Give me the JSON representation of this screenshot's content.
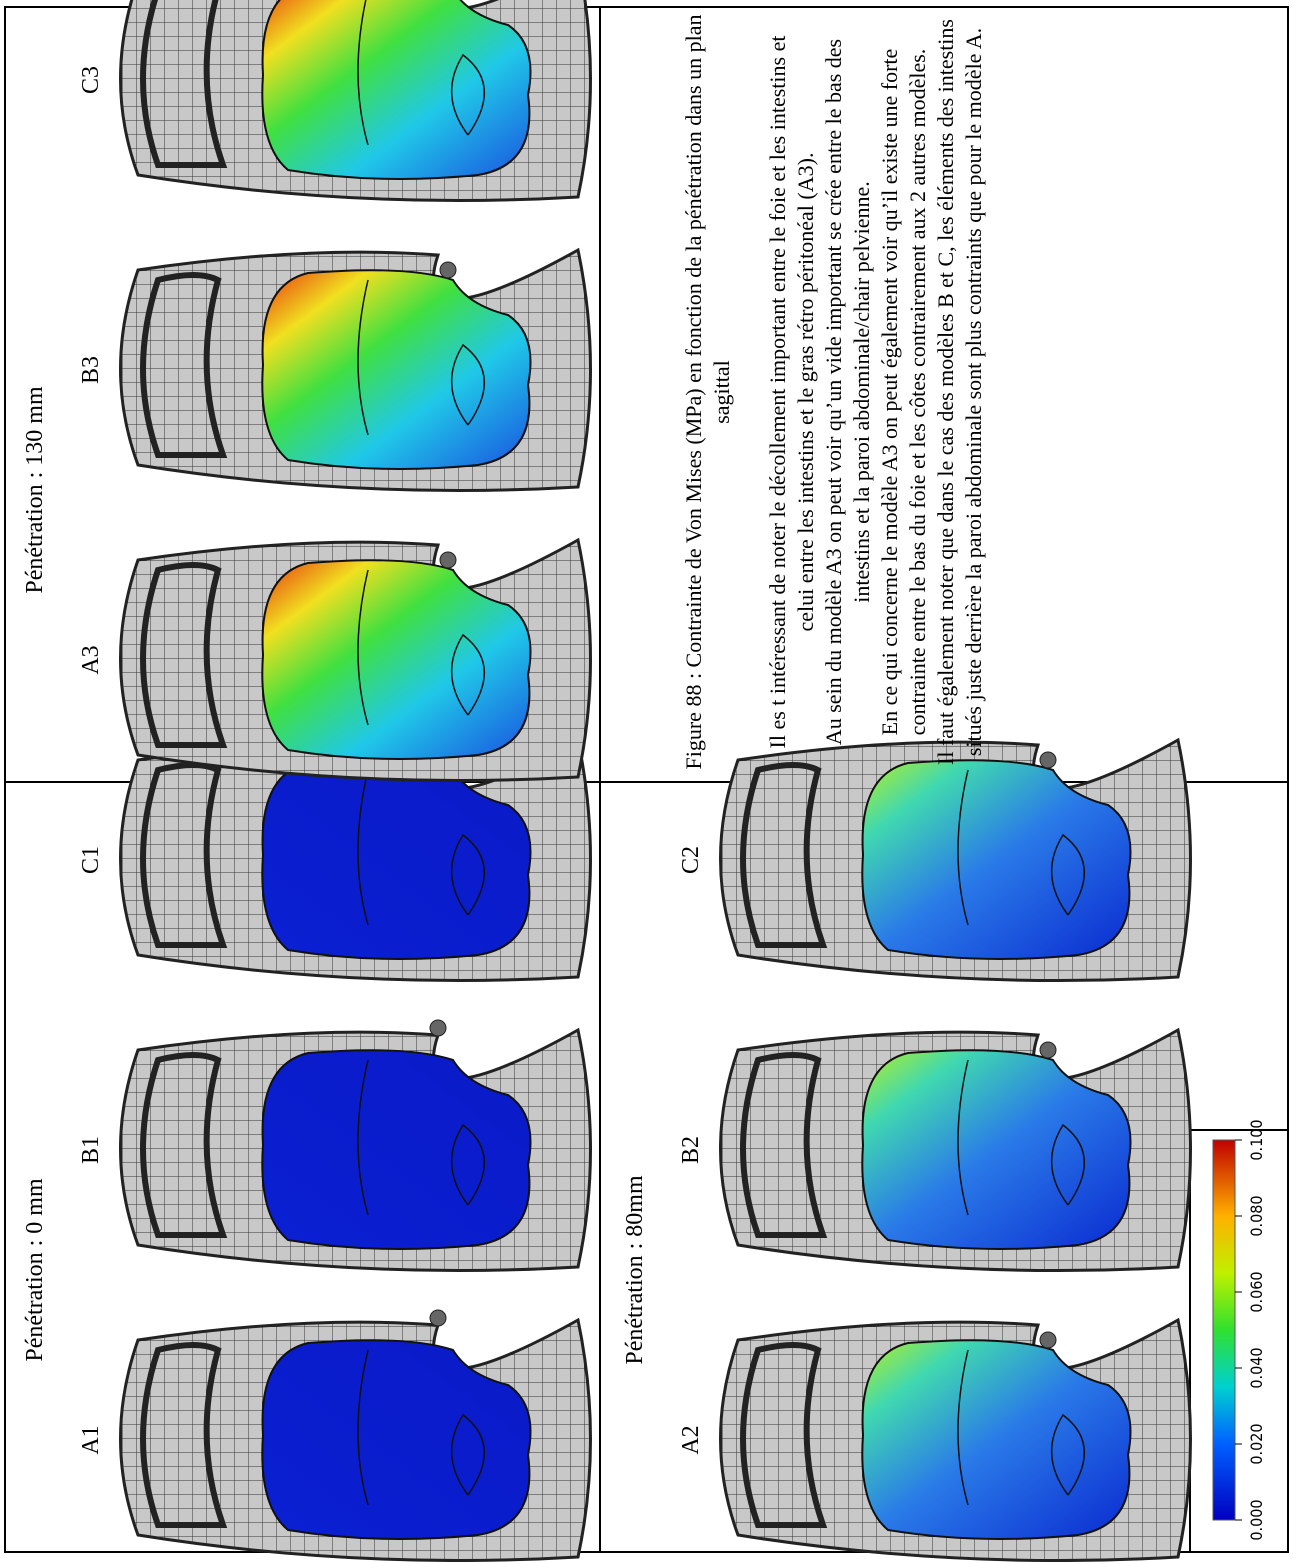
{
  "panels": [
    {
      "label": "Pénétration : 0 mm",
      "models": [
        "A1",
        "B1",
        "C1"
      ]
    },
    {
      "label": "Pénétration : 80mm",
      "models": [
        "A2",
        "B2",
        "C2"
      ]
    },
    {
      "label": "Pénétration : 130 mm",
      "models": [
        "A3",
        "B3",
        "C3"
      ]
    }
  ],
  "colorbar": {
    "ticks": [
      "0.000",
      "0.020",
      "0.040",
      "0.060",
      "0.080",
      "0.100"
    ]
  },
  "caption": {
    "title": "Figure 88 : Contrainte de Von Mises (MPa) en fonction de la pénétration dans un plan sagittal",
    "paragraphs": [
      "Il es t intéressant de noter le décollement important entre le foie et les intestins et celui entre les intestins et le gras rétro péritonéal (A3).",
      "Au sein du modèle A3 on peut voir qu’un vide important se crée entre le bas des intestins et la paroi abdominale/chair pelvienne.",
      "En ce qui concerne le modèle A3 on peut également voir qu’il existe une forte contrainte entre le bas du foie et les côtes contrairement aux 2 autres modèles.",
      "Il faut également noter que dans le cas des modèles B et C, les éléments des intestins situés juste derrière la paroi abdominale sont plus contraints que pour le modèle A."
    ]
  }
}
